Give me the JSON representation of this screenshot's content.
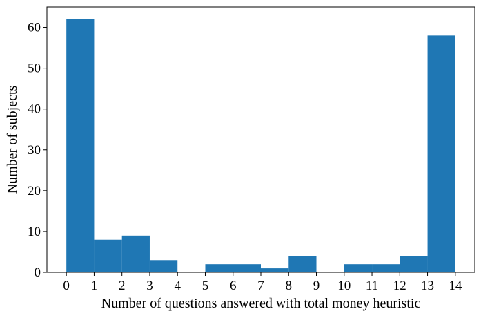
{
  "chart_data": {
    "type": "bar",
    "xlabel": "Number of questions answered with total money heuristic",
    "ylabel": "Number of subjects",
    "bin_edges": [
      0,
      1,
      2,
      3,
      4,
      5,
      6,
      7,
      8,
      9,
      10,
      11,
      12,
      13,
      14
    ],
    "values": [
      62,
      8,
      9,
      3,
      0,
      2,
      2,
      1,
      4,
      0,
      2,
      2,
      4,
      58
    ],
    "xlim": [
      -0.7,
      14.7
    ],
    "ylim": [
      0,
      65
    ],
    "x_ticks": [
      0,
      1,
      2,
      3,
      4,
      5,
      6,
      7,
      8,
      9,
      10,
      11,
      12,
      13,
      14
    ],
    "y_ticks": [
      0,
      10,
      20,
      30,
      40,
      50,
      60
    ],
    "bar_color": "#1f77b4",
    "grid": false,
    "legend": "none"
  }
}
